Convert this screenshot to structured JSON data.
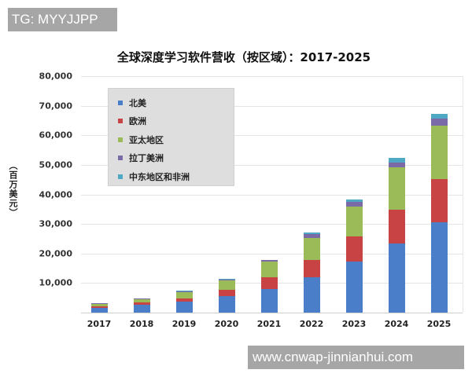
{
  "watermarks": {
    "top": "TG: MYYJJPP",
    "bottom": "www.cnwap-jinnianhui.com"
  },
  "chart_data": {
    "type": "bar",
    "stacked": true,
    "title": "全球深度学习软件营收（按区域）：2017-2025",
    "xlabel": "",
    "ylabel": "（百万美元）",
    "ylim": [
      0,
      80000
    ],
    "y_ticks": [
      "10,000",
      "20,000",
      "30,000",
      "40,000",
      "50,000",
      "60,000",
      "70,000",
      "80,000"
    ],
    "y_tick_values": [
      10000,
      20000,
      30000,
      40000,
      50000,
      60000,
      70000,
      80000
    ],
    "grid": true,
    "legend_position": "upper-left-inside",
    "categories": [
      "2017",
      "2018",
      "2019",
      "2020",
      "2021",
      "2022",
      "2023",
      "2024",
      "2025"
    ],
    "series": [
      {
        "name": "北美",
        "color": "#4a7ec8",
        "values": [
          1600,
          2600,
          3600,
          5500,
          8000,
          12000,
          17300,
          23400,
          30500
        ]
      },
      {
        "name": "欧洲",
        "color": "#c84444",
        "values": [
          500,
          800,
          1300,
          2300,
          4000,
          5900,
          8500,
          11400,
          14600
        ]
      },
      {
        "name": "亚太地区",
        "color": "#9bbb59",
        "values": [
          700,
          1000,
          2100,
          3200,
          5300,
          7400,
          10100,
          14400,
          18100
        ]
      },
      {
        "name": "拉丁美洲",
        "color": "#7b6aa8",
        "values": [
          400,
          300,
          300,
          300,
          400,
          1200,
          1700,
          1600,
          2400
        ]
      },
      {
        "name": "中东地区和非洲",
        "color": "#4fa8c4",
        "values": [
          100,
          100,
          100,
          100,
          200,
          600,
          700,
          1600,
          1600
        ]
      }
    ],
    "totals": [
      3300,
      4800,
      7400,
      11400,
      17900,
      27100,
      38300,
      52400,
      67200
    ]
  }
}
